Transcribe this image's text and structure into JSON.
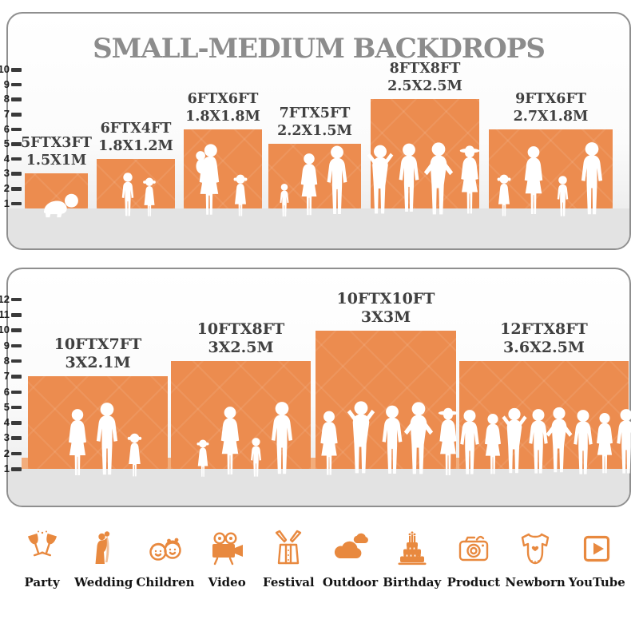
{
  "title": "SMALL-MEDIUM BACKDROPS",
  "colors": {
    "backdrop_orange": "#EC8C4F",
    "icon_orange": "#E8893F",
    "ground_gray": "#E3E3E3",
    "title_gray": "#8C8C8C"
  },
  "panel_small_medium": {
    "axis_ticks": [
      "10",
      "9",
      "8",
      "7",
      "6",
      "5",
      "4",
      "3",
      "2",
      "1"
    ],
    "backdrops": [
      {
        "size_ft": "5FTX3FT",
        "size_m": "1.5X1M"
      },
      {
        "size_ft": "6FTX4FT",
        "size_m": "1.8X1.2M"
      },
      {
        "size_ft": "6FTX6FT",
        "size_m": "1.8X1.8M"
      },
      {
        "size_ft": "7FTX5FT",
        "size_m": "2.2X1.5M"
      },
      {
        "size_ft": "8FTX8FT",
        "size_m": "2.5X2.5M"
      },
      {
        "size_ft": "9FTX6FT",
        "size_m": "2.7X1.8M"
      }
    ]
  },
  "panel_large": {
    "axis_ticks": [
      "12",
      "11",
      "10",
      "9",
      "8",
      "7",
      "6",
      "5",
      "4",
      "3",
      "2",
      "1"
    ],
    "backdrops": [
      {
        "size_ft": "10FTX7FT",
        "size_m": "3X2.1M"
      },
      {
        "size_ft": "10FTX8FT",
        "size_m": "3X2.5M"
      },
      {
        "size_ft": "10FTX10FT",
        "size_m": "3X3M"
      },
      {
        "size_ft": "12FTX8FT",
        "size_m": "3.6X2.5M"
      }
    ]
  },
  "categories": [
    {
      "label": "Party",
      "icon": "party-icon"
    },
    {
      "label": "Wedding",
      "icon": "wedding-icon"
    },
    {
      "label": "Children",
      "icon": "children-icon"
    },
    {
      "label": "Video",
      "icon": "video-icon"
    },
    {
      "label": "Festival",
      "icon": "festival-icon"
    },
    {
      "label": "Outdoor",
      "icon": "outdoor-icon"
    },
    {
      "label": "Birthday",
      "icon": "birthday-icon"
    },
    {
      "label": "Product",
      "icon": "product-icon"
    },
    {
      "label": "Newborn",
      "icon": "newborn-icon"
    },
    {
      "label": "YouTube",
      "icon": "youtube-icon"
    }
  ]
}
